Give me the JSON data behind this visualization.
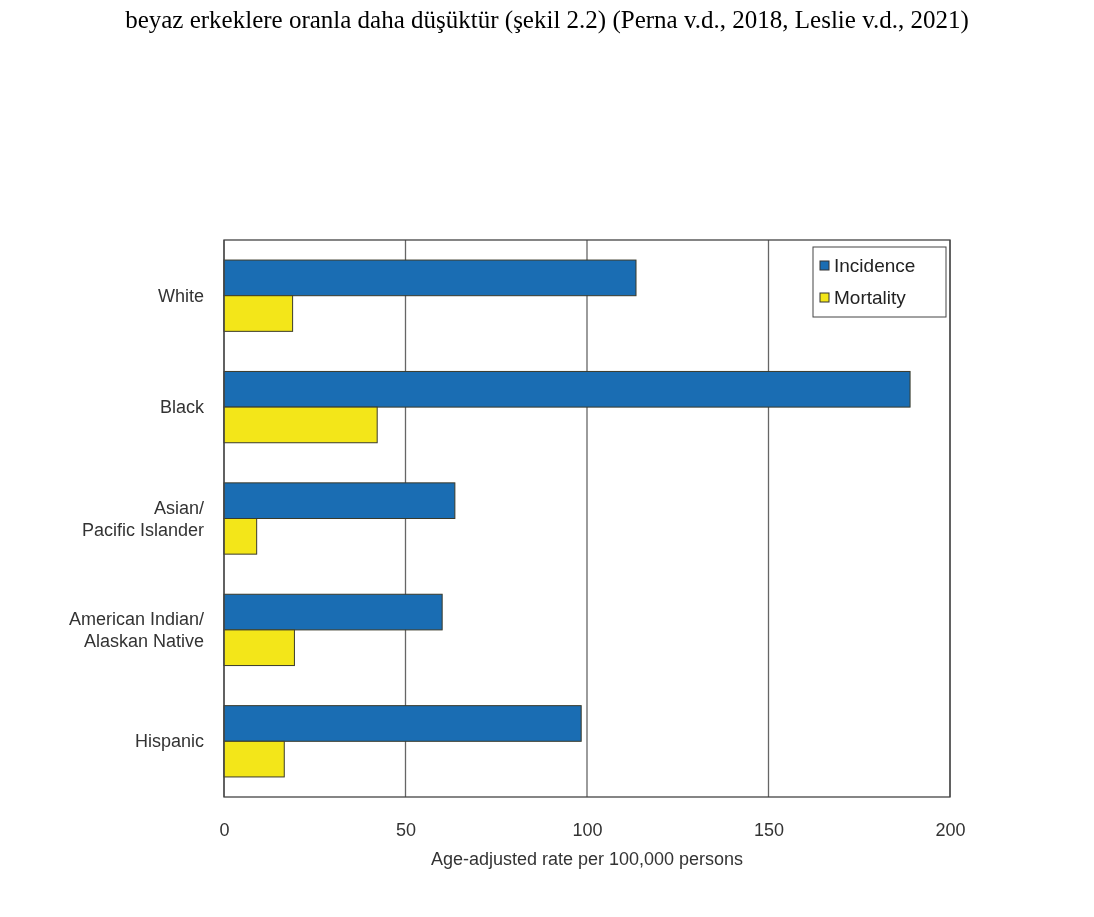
{
  "chart_data": {
    "type": "bar",
    "orientation": "horizontal",
    "categories": [
      "White",
      "Black",
      "Asian/ Pacific Islander",
      "American Indian/ Alaskan Native",
      "Hispanic"
    ],
    "series": [
      {
        "name": "Incidence",
        "color": "#1a6db3",
        "values": [
          113.5,
          189,
          63.6,
          60.1,
          98.4
        ]
      },
      {
        "name": "Mortality",
        "color": "#f3e619",
        "values": [
          18.9,
          42.2,
          9.0,
          19.4,
          16.6
        ]
      }
    ],
    "xlim": [
      0,
      200
    ],
    "xticks": [
      0,
      50,
      100,
      150,
      200
    ],
    "xlabel": "Age-adjusted rate per 100,000 persons",
    "grid": "x",
    "legend": "top right",
    "annotations": [
      "beyaz erkeklere oranla daha düşüktür (şekil 2.2) (Perna v.d., 2018, Leslie v.d., 2021)"
    ]
  }
}
